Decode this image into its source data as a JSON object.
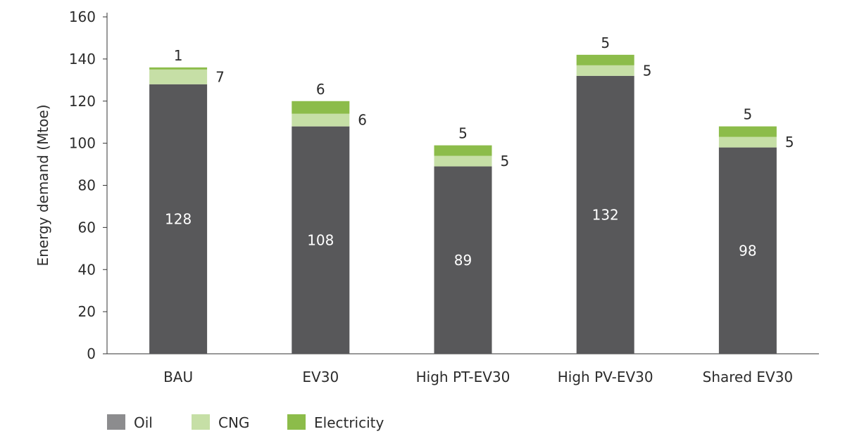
{
  "chart_data": {
    "type": "bar",
    "stacked": true,
    "categories": [
      "BAU",
      "EV30",
      "High PT-EV30",
      "High PV-EV30",
      "Shared EV30"
    ],
    "series": [
      {
        "name": "Oil",
        "color": "#58585a",
        "values": [
          128,
          108,
          89,
          132,
          98
        ]
      },
      {
        "name": "CNG",
        "color": "#c6dfa6",
        "values": [
          7,
          6,
          5,
          5,
          5
        ]
      },
      {
        "name": "Electricity",
        "color": "#8cbc4a",
        "values": [
          1,
          6,
          5,
          5,
          5
        ]
      }
    ],
    "xlabel": "",
    "ylabel": "Energy demand (Mtoe)",
    "ylim": [
      0,
      160
    ],
    "yticks": [
      0,
      20,
      40,
      60,
      80,
      100,
      120,
      140,
      160
    ],
    "grid": false,
    "legend_position": "bottom-left",
    "legend_swatch_colors": [
      "#8c8c8e",
      "#c6dfa6",
      "#8cbc4a"
    ]
  }
}
